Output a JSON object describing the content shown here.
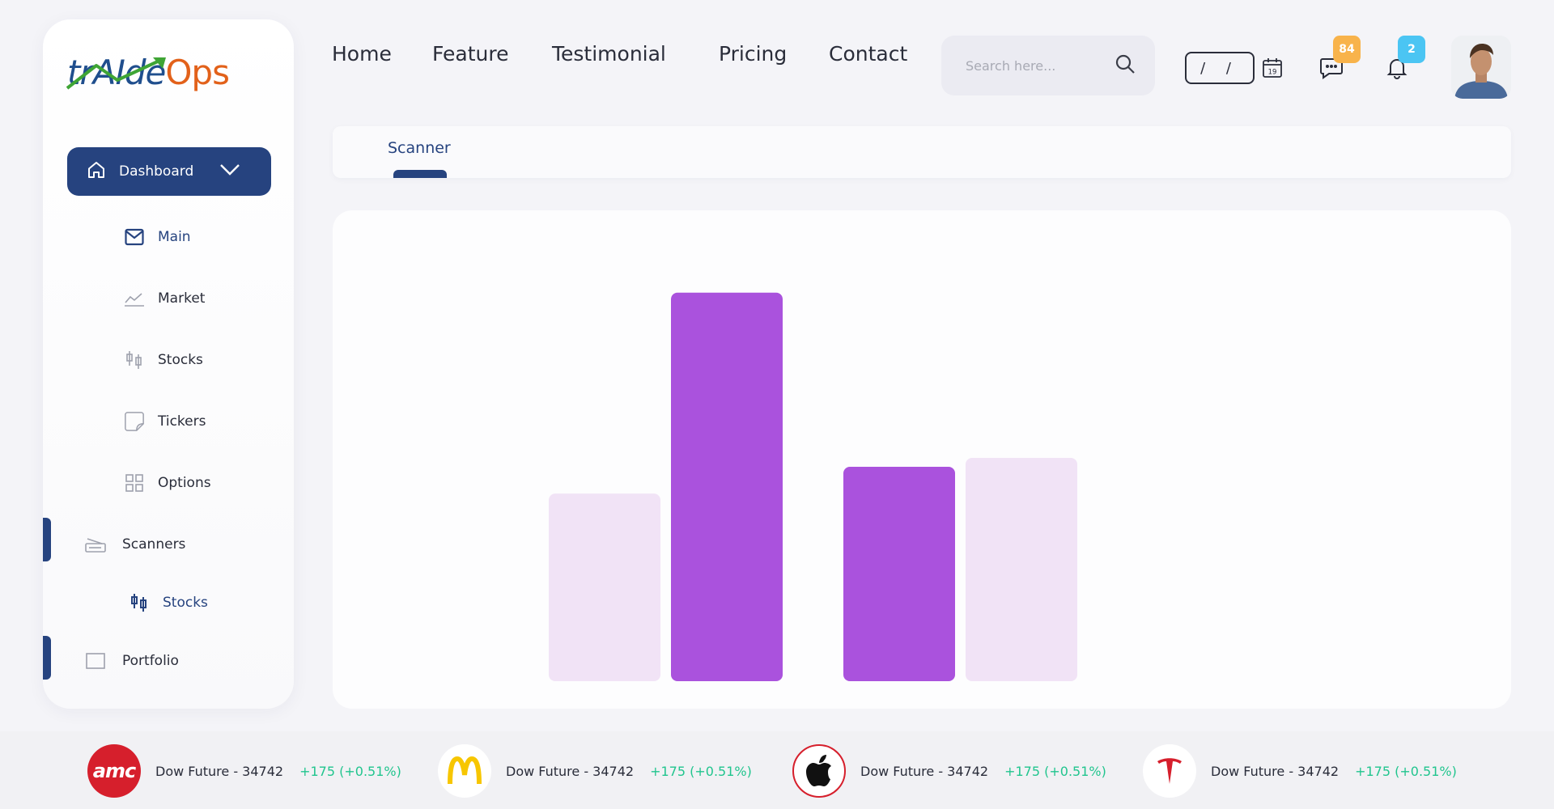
{
  "brand": {
    "part1": "trAIde",
    "part2": "Ops"
  },
  "sidebar": {
    "dashboard": {
      "label": "Dashboard",
      "icon": "home-icon"
    },
    "sub_items": [
      {
        "label": "Main",
        "icon": "mail-icon"
      },
      {
        "label": "Market",
        "icon": "line-chart-icon"
      },
      {
        "label": "Stocks",
        "icon": "candlestick-icon"
      },
      {
        "label": "Tickers",
        "icon": "sticky-note-icon"
      },
      {
        "label": "Options",
        "icon": "grid-icon"
      }
    ],
    "scanners": {
      "label": "Scanners",
      "icon": "scanner-icon"
    },
    "scanner_sub": {
      "label": "Stocks",
      "icon": "candlestick-icon"
    },
    "portfolio": {
      "label": "Portfolio",
      "icon": "folder-icon"
    }
  },
  "header": {
    "nav": [
      "Home",
      "Feature",
      "Testimonial",
      "Pricing",
      "Contact"
    ],
    "search_placeholder": "Search here...",
    "date_value": "/ /",
    "calendar_day": "19",
    "messages_count": "84",
    "notifications_count": "2"
  },
  "tabs": [
    {
      "label": "Scanner",
      "active": true
    }
  ],
  "colors": {
    "primary": "#26437f",
    "accent_orange": "#e2611a",
    "bar_dark": "#aa52dd",
    "bar_light": "#f1e3f6",
    "positive": "#21c58e"
  },
  "chart_data": {
    "type": "bar",
    "categories": [
      "",
      ""
    ],
    "series": [
      {
        "values": [
          42,
          48
        ]
      },
      {
        "values": [
          87,
          50
        ]
      }
    ],
    "ylim": [
      0,
      100
    ],
    "grid": false,
    "legend": "none"
  },
  "ticker": [
    {
      "company": "amc",
      "logo": "amc-logo",
      "name": "Dow Future - 34742",
      "change": "+175 (+0.51%)"
    },
    {
      "company": "mcdonalds",
      "logo": "mcdonalds-logo",
      "name": "Dow Future - 34742",
      "change": "+175 (+0.51%)"
    },
    {
      "company": "apple",
      "logo": "apple-logo",
      "name": "Dow Future - 34742",
      "change": "+175 (+0.51%)"
    },
    {
      "company": "tesla",
      "logo": "tesla-logo",
      "name": "Dow Future - 34742",
      "change": "+175 (+0.51%)"
    }
  ]
}
